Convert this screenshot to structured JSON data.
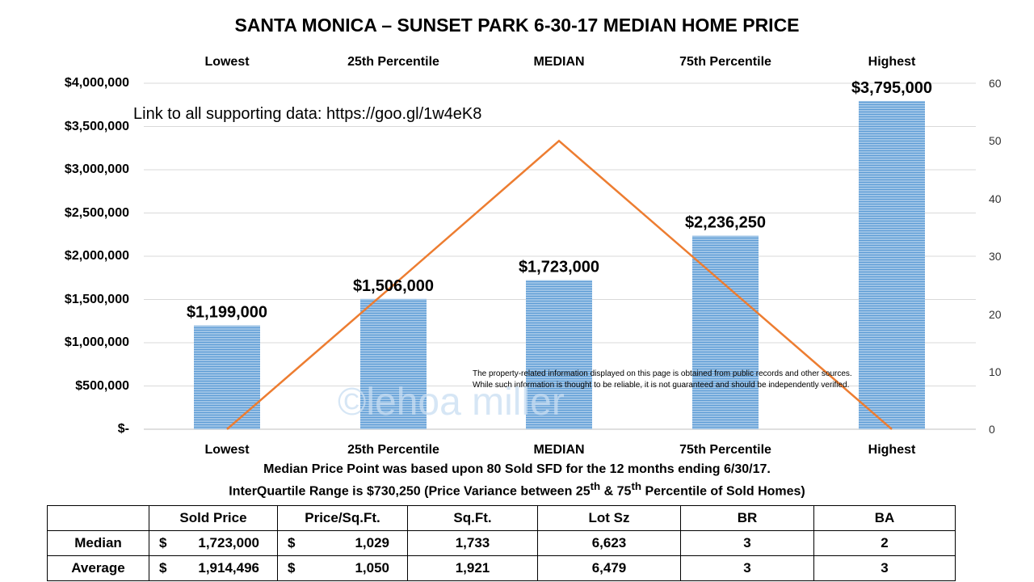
{
  "chart_data": {
    "type": "bar",
    "title": "SANTA MONICA – SUNSET PARK 6-30-17 MEDIAN HOME PRICE",
    "categories": [
      "Lowest",
      "25th Percentile",
      "MEDIAN",
      "75th Percentile",
      "Highest"
    ],
    "series": [
      {
        "type": "bar",
        "color": "#9dc3e6",
        "axis": "left",
        "values": [
          1199000,
          1506000,
          1723000,
          2236250,
          3795000
        ],
        "labels": [
          "$1,199,000",
          "$1,506,000",
          "$1,723,000",
          "$2,236,250",
          "$3,795,000"
        ]
      },
      {
        "type": "line",
        "color": "#ed7d31",
        "axis": "right",
        "values": [
          0,
          25,
          50,
          25,
          0
        ]
      }
    ],
    "y_left": {
      "lim": [
        0,
        4000000
      ],
      "ticks": [
        "$-",
        "$500,000",
        "$1,000,000",
        "$1,500,000",
        "$2,000,000",
        "$2,500,000",
        "$3,000,000",
        "$3,500,000",
        "$4,000,000"
      ]
    },
    "y_right": {
      "lim": [
        0,
        60
      ],
      "ticks": [
        "0",
        "10",
        "20",
        "30",
        "40",
        "50",
        "60"
      ]
    },
    "grid": true,
    "legend": "none"
  },
  "link_text": "Link to all supporting data:  https://goo.gl/1w4eK8",
  "disclaimer": {
    "line1": "The property-related information displayed on this page is obtained from public records and other sources.",
    "line2": "While such information is thought to be reliable, it is not guaranteed and should be independently verified."
  },
  "watermark": "©lehoa miller",
  "notes": {
    "line1": "Median Price Point was based upon 80 Sold SFD for the 12 months ending 6/30/17.",
    "line2_a": "InterQuartile  Range is $730,250 (Price Variance  between 25",
    "line2_sup1": "th",
    "line2_b": " & 75",
    "line2_sup2": "th",
    "line2_c": " Percentile of Sold Homes)"
  },
  "table": {
    "headers": [
      "",
      "Sold Price",
      "Price/Sq.Ft.",
      "Sq.Ft.",
      "Lot Sz",
      "BR",
      "BA"
    ],
    "rows": [
      {
        "label": "Median",
        "sold_cur": "$",
        "sold_val": "1,723,000",
        "ppsf_cur": "$",
        "ppsf_val": "1,029",
        "sqft": "1,733",
        "lot": "6,623",
        "br": "3",
        "ba": "2"
      },
      {
        "label": "Average",
        "sold_cur": "$",
        "sold_val": "1,914,496",
        "ppsf_cur": "$",
        "ppsf_val": "1,050",
        "sqft": "1,921",
        "lot": "6,479",
        "br": "3",
        "ba": "3"
      }
    ]
  }
}
